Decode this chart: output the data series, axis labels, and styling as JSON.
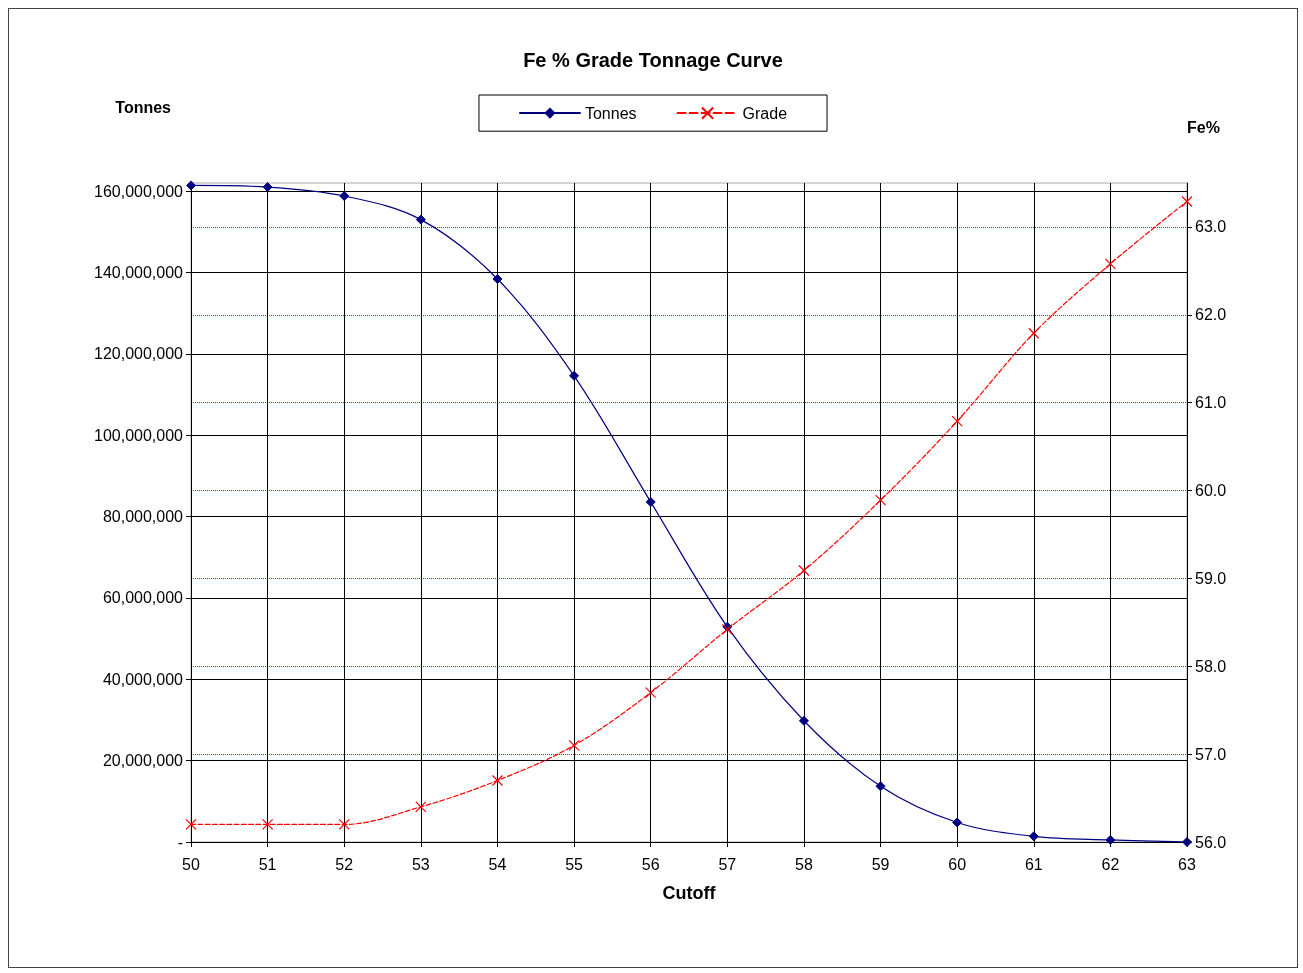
{
  "chart_data": {
    "type": "line",
    "title": "Fe % Grade Tonnage Curve",
    "xlabel": "Cutoff",
    "ylabel": "Tonnes",
    "y2label": "Fe%",
    "x": [
      50,
      51,
      52,
      53,
      54,
      55,
      56,
      57,
      58,
      59,
      60,
      61,
      62,
      63
    ],
    "series": [
      {
        "name": "Tonnes",
        "color": "#000080",
        "marker": "diamond",
        "line_style": "solid",
        "values": [
          161400000,
          161000000,
          158800000,
          153000000,
          138400000,
          114600000,
          83600000,
          52900000,
          29800000,
          13700000,
          4800000,
          1400000,
          500000,
          0
        ]
      },
      {
        "name": "Grade",
        "color": "#ff0000",
        "marker": "cross",
        "line_style": "dashed",
        "axis": "y2",
        "values": [
          56.2,
          56.2,
          56.2,
          56.4,
          56.7,
          57.1,
          57.7,
          58.42,
          59.09,
          59.89,
          60.79,
          61.79,
          62.58,
          63.29
        ]
      }
    ],
    "xlim": [
      50,
      63
    ],
    "xticks": [
      50,
      51,
      52,
      53,
      54,
      55,
      56,
      57,
      58,
      59,
      60,
      61,
      62,
      63
    ],
    "ylim": [
      0,
      162000000
    ],
    "yticks": [
      {
        "value": 0,
        "label": "-"
      },
      {
        "value": 20000000,
        "label": "20,000,000"
      },
      {
        "value": 40000000,
        "label": "40,000,000"
      },
      {
        "value": 60000000,
        "label": "60,000,000"
      },
      {
        "value": 80000000,
        "label": "80,000,000"
      },
      {
        "value": 100000000,
        "label": "100,000,000"
      },
      {
        "value": 120000000,
        "label": "120,000,000"
      },
      {
        "value": 140000000,
        "label": "140,000,000"
      },
      {
        "value": 160000000,
        "label": "160,000,000"
      }
    ],
    "y2lim": [
      56,
      63.5
    ],
    "y2ticks": [
      {
        "value": 56,
        "label": "56.0"
      },
      {
        "value": 57,
        "label": "57.0"
      },
      {
        "value": 58,
        "label": "58.0"
      },
      {
        "value": 59,
        "label": "59.0"
      },
      {
        "value": 60,
        "label": "60.0"
      },
      {
        "value": 61,
        "label": "61.0"
      },
      {
        "value": 62,
        "label": "62.0"
      },
      {
        "value": 63,
        "label": "63.0"
      }
    ],
    "grid": true,
    "legend": "top"
  }
}
